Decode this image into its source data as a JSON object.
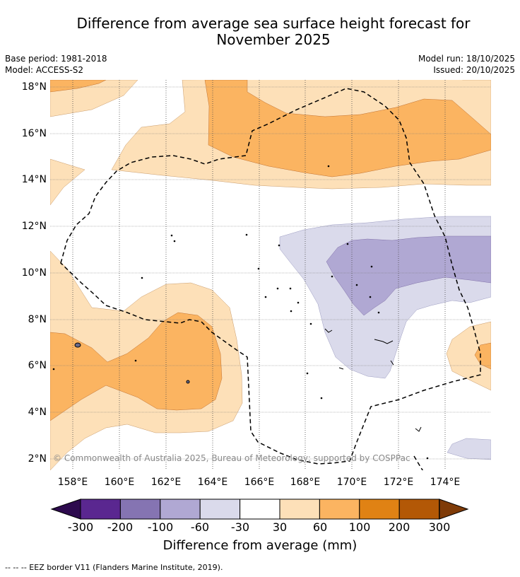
{
  "title_line1": "Difference from average sea surface height forecast for",
  "title_line2": "November 2025",
  "base_period": "Base period: 1981-2018",
  "model": "Model: ACCESS-S2",
  "model_run": "Model run: 18/10/2025",
  "issued": "Issued: 20/10/2025",
  "lat_labels": [
    "18°N",
    "16°N",
    "14°N",
    "12°N",
    "10°N",
    "8°N",
    "6°N",
    "4°N",
    "2°N"
  ],
  "lon_labels": [
    "158°E",
    "160°E",
    "162°E",
    "164°E",
    "166°E",
    "168°E",
    "170°E",
    "172°E",
    "174°E"
  ],
  "copyright": "© Commonwealth of Australia 2025, Bureau of Meteorology; supported by COSPPac",
  "colorbar": {
    "ticks": [
      "-300",
      "-200",
      "-100",
      "-60",
      "-30",
      "30",
      "60",
      "100",
      "200",
      "300"
    ],
    "colors": [
      "#2d0a4e",
      "#5a2790",
      "#8574b2",
      "#b0a8d3",
      "#dadaeb",
      "#ffffff",
      "#fde0b8",
      "#fbb461",
      "#e08214",
      "#b35806",
      "#7f3b08"
    ],
    "title": "Difference from average (mm)"
  },
  "footer": "--  --  -- EEZ border V11 (Flanders Marine Institute, 2019)."
}
